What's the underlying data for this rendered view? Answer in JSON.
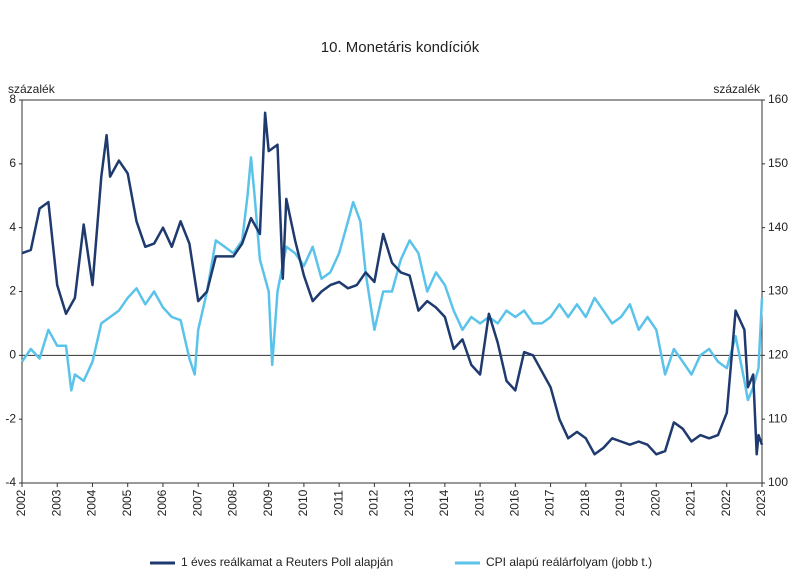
{
  "chart_data": {
    "type": "line",
    "title": "10. Monetáris kondíciók",
    "y_label": "százalék",
    "y2_label": "százalék",
    "xlim": [
      2002,
      2023
    ],
    "xticks": [
      2002,
      2003,
      2004,
      2005,
      2006,
      2007,
      2008,
      2009,
      2010,
      2011,
      2012,
      2013,
      2014,
      2015,
      2016,
      2017,
      2018,
      2019,
      2020,
      2021,
      2022,
      2023
    ],
    "ylim": [
      -4,
      8
    ],
    "yticks": [
      -4,
      -2,
      0,
      2,
      4,
      6,
      8
    ],
    "y2lim": [
      100,
      160
    ],
    "y2ticks": [
      100,
      110,
      120,
      130,
      140,
      150,
      160
    ],
    "legend": "bottom",
    "series": [
      {
        "name": "1 éves reálkamat a Reuters Poll alapján",
        "color": "#1f3a6e",
        "axis": "y",
        "x": [
          2002,
          2002.25,
          2002.5,
          2002.75,
          2003,
          2003.25,
          2003.5,
          2003.75,
          2004,
          2004.25,
          2004.4,
          2004.5,
          2004.75,
          2005,
          2005.25,
          2005.5,
          2005.75,
          2006,
          2006.25,
          2006.5,
          2006.75,
          2007,
          2007.25,
          2007.5,
          2007.75,
          2008,
          2008.25,
          2008.5,
          2008.75,
          2008.9,
          2009,
          2009.25,
          2009.4,
          2009.5,
          2009.75,
          2010,
          2010.25,
          2010.5,
          2010.75,
          2011,
          2011.25,
          2011.5,
          2011.75,
          2012,
          2012.25,
          2012.5,
          2012.75,
          2013,
          2013.25,
          2013.5,
          2013.75,
          2014,
          2014.25,
          2014.5,
          2014.75,
          2015,
          2015.25,
          2015.5,
          2015.75,
          2016,
          2016.25,
          2016.5,
          2016.75,
          2017,
          2017.25,
          2017.5,
          2017.75,
          2018,
          2018.25,
          2018.5,
          2018.75,
          2019,
          2019.25,
          2019.5,
          2019.75,
          2020,
          2020.25,
          2020.5,
          2020.75,
          2021,
          2021.25,
          2021.5,
          2021.75,
          2022,
          2022.25,
          2022.5,
          2022.6,
          2022.75,
          2022.85,
          2022.9,
          2023
        ],
        "values": [
          3.2,
          3.3,
          4.6,
          4.8,
          2.2,
          1.3,
          1.8,
          4.1,
          2.2,
          5.6,
          6.9,
          5.6,
          6.1,
          5.7,
          4.2,
          3.4,
          3.5,
          4.0,
          3.4,
          4.2,
          3.5,
          1.7,
          2.0,
          3.1,
          3.1,
          3.1,
          3.5,
          4.3,
          3.8,
          7.6,
          6.4,
          6.6,
          2.4,
          4.9,
          3.6,
          2.5,
          1.7,
          2.0,
          2.2,
          2.3,
          2.1,
          2.2,
          2.6,
          2.3,
          3.8,
          2.9,
          2.6,
          2.5,
          1.4,
          1.7,
          1.5,
          1.2,
          0.2,
          0.5,
          -0.3,
          -0.6,
          1.3,
          0.4,
          -0.8,
          -1.1,
          0.1,
          0.0,
          -0.5,
          -1.0,
          -2.0,
          -2.6,
          -2.4,
          -2.6,
          -3.1,
          -2.9,
          -2.6,
          -2.7,
          -2.8,
          -2.7,
          -2.8,
          -3.1,
          -3.0,
          -2.1,
          -2.3,
          -2.7,
          -2.5,
          -2.6,
          -2.5,
          -1.8,
          1.4,
          0.8,
          -1.0,
          -0.6,
          -3.1,
          -2.5,
          -2.8
        ]
      },
      {
        "name": "CPI alapú reálárfolyam (jobb t.)",
        "color": "#5bc3ea",
        "axis": "y2",
        "x": [
          2002,
          2002.25,
          2002.5,
          2002.75,
          2003,
          2003.25,
          2003.4,
          2003.5,
          2003.75,
          2004,
          2004.25,
          2004.5,
          2004.75,
          2005,
          2005.25,
          2005.5,
          2005.75,
          2006,
          2006.25,
          2006.5,
          2006.75,
          2006.9,
          2007,
          2007.25,
          2007.5,
          2007.75,
          2008,
          2008.25,
          2008.4,
          2008.5,
          2008.6,
          2008.75,
          2009,
          2009.1,
          2009.25,
          2009.5,
          2009.75,
          2010,
          2010.25,
          2010.5,
          2010.75,
          2011,
          2011.25,
          2011.4,
          2011.6,
          2011.75,
          2012,
          2012.25,
          2012.5,
          2012.75,
          2013,
          2013.25,
          2013.5,
          2013.75,
          2014,
          2014.25,
          2014.5,
          2014.75,
          2015,
          2015.25,
          2015.5,
          2015.75,
          2016,
          2016.25,
          2016.5,
          2016.75,
          2017,
          2017.25,
          2017.5,
          2017.75,
          2018,
          2018.25,
          2018.5,
          2018.75,
          2019,
          2019.25,
          2019.5,
          2019.75,
          2020,
          2020.25,
          2020.5,
          2020.75,
          2021,
          2021.25,
          2021.5,
          2021.75,
          2022,
          2022.25,
          2022.5,
          2022.6,
          2022.75,
          2022.9,
          2023
        ],
        "values": [
          119,
          121,
          119.5,
          124,
          121.5,
          121.5,
          114.5,
          117,
          116,
          119,
          125,
          126,
          127,
          129,
          130.5,
          128,
          130,
          127.5,
          126,
          125.5,
          119.5,
          117,
          124,
          130,
          138,
          137,
          136,
          138,
          145,
          151,
          145,
          135,
          130,
          118.5,
          130,
          137,
          136,
          134,
          137,
          132,
          133,
          136,
          141,
          144,
          141,
          133,
          124,
          130,
          130,
          135,
          138,
          136,
          130,
          133,
          131,
          127,
          124,
          126,
          125,
          126,
          125,
          127,
          126,
          127,
          125,
          125,
          126,
          128,
          126,
          128,
          126,
          129,
          127,
          125,
          126,
          128,
          124,
          126,
          124,
          117,
          121,
          119,
          117,
          120,
          121,
          119,
          118,
          123,
          116,
          113,
          115,
          118,
          129
        ]
      }
    ]
  }
}
